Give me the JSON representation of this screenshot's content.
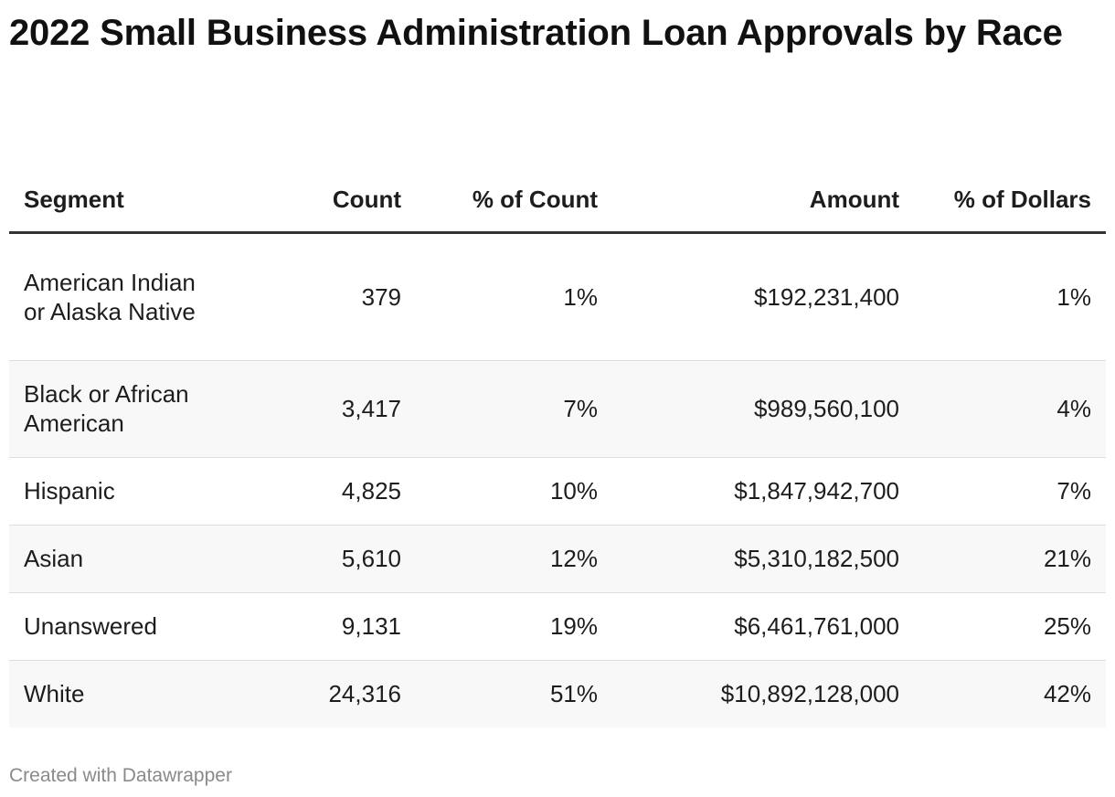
{
  "chart_data": {
    "type": "table",
    "title": "2022 Small Business Administration Loan Approvals by Race",
    "columns": [
      "Segment",
      "Count",
      "% of Count",
      "Amount",
      "% of Dollars"
    ],
    "rows": [
      {
        "segment": "American Indian or Alaska Native",
        "count": "379",
        "pct_count": "1%",
        "amount": "$192,231,400",
        "pct_dollars": "1%"
      },
      {
        "segment": "Black or African American",
        "count": "3,417",
        "pct_count": "7%",
        "amount": "$989,560,100",
        "pct_dollars": "4%"
      },
      {
        "segment": "Hispanic",
        "count": "4,825",
        "pct_count": "10%",
        "amount": "$1,847,942,700",
        "pct_dollars": "7%"
      },
      {
        "segment": "Asian",
        "count": "5,610",
        "pct_count": "12%",
        "amount": "$5,310,182,500",
        "pct_dollars": "21%"
      },
      {
        "segment": "Unanswered",
        "count": "9,131",
        "pct_count": "19%",
        "amount": "$6,461,761,000",
        "pct_dollars": "25%"
      },
      {
        "segment": "White",
        "count": "24,316",
        "pct_count": "51%",
        "amount": "$10,892,128,000",
        "pct_dollars": "42%"
      }
    ]
  },
  "footer": {
    "credit": "Created with Datawrapper"
  }
}
